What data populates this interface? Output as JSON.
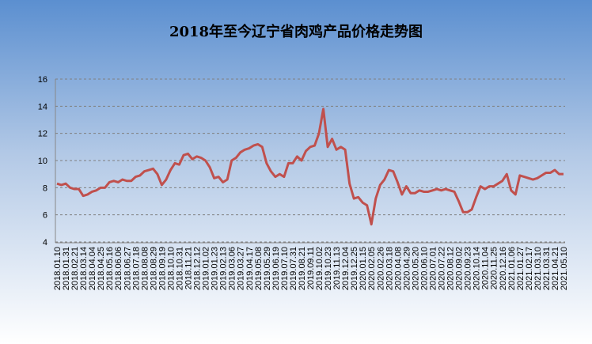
{
  "chart_data": {
    "type": "line",
    "title": "2018年至今辽宁省肉鸡产品价格走势图",
    "categories": [
      "2018.01.10",
      null,
      "2018.01.31",
      null,
      "2018.02.21",
      null,
      "2018.03.14",
      null,
      "2018.04.04",
      null,
      "2018.04.25",
      null,
      "2018.05.16",
      null,
      "2018.06.06",
      null,
      "2018.06.27",
      null,
      "2018.07.18",
      null,
      "2018.08.08",
      null,
      "2018.08.29",
      null,
      "2018.09.19",
      null,
      "2018.10.10",
      null,
      "2018.10.31",
      null,
      "2018.11.21",
      null,
      "2018.12.12",
      null,
      "2019.01.02",
      null,
      "2019.01.23",
      null,
      "2019.02.13",
      null,
      "2019.03.06",
      null,
      "2019.03.27",
      null,
      "2019.04.17",
      null,
      "2019.05.08",
      null,
      "2019.05.29",
      null,
      "2019.06.19",
      null,
      "2019.07.10",
      null,
      "2019.07.31",
      null,
      "2019.08.21",
      null,
      "2019.09.11",
      null,
      "2019.10.02",
      null,
      "2019.10.23",
      null,
      "2019.11.13",
      null,
      "2019.12.04",
      null,
      "2019.12.25",
      null,
      "2020.01.15",
      null,
      "2020.02.05",
      null,
      "2020.02.26",
      null,
      "2020.03.18",
      null,
      "2020.04.08",
      null,
      "2020.04.29",
      null,
      "2020.05.20",
      null,
      "2020.06.10",
      null,
      "2020.07.01",
      null,
      "2020.07.22",
      null,
      "2020.08.12",
      null,
      "2020.09.02",
      null,
      "2020.09.23",
      null,
      "2020.10.14",
      null,
      "2020.11.04",
      null,
      "2020.11.25",
      null,
      "2020.12.16",
      null,
      "2021.01.06",
      null,
      "2021.01.27",
      null,
      "2021.02.17",
      null,
      "2021.03.10",
      null,
      "2021.03.31",
      null,
      "2021.04.21",
      null,
      "2021.05.10"
    ],
    "series": [
      {
        "color": "#c0504d",
        "values": [
          8.3,
          8.2,
          8.3,
          8.0,
          7.9,
          7.9,
          7.4,
          7.5,
          7.7,
          7.8,
          8.0,
          8.0,
          8.4,
          8.5,
          8.4,
          8.6,
          8.5,
          8.5,
          8.8,
          8.9,
          9.2,
          9.3,
          9.4,
          9.0,
          8.2,
          8.6,
          9.3,
          9.8,
          9.7,
          10.4,
          10.5,
          10.1,
          10.3,
          10.2,
          10.0,
          9.5,
          8.7,
          8.8,
          8.4,
          8.6,
          10.0,
          10.2,
          10.6,
          10.8,
          10.9,
          11.1,
          11.2,
          11.0,
          9.8,
          9.2,
          8.8,
          9.0,
          8.8,
          9.8,
          9.8,
          10.3,
          10.0,
          10.7,
          11.0,
          11.1,
          12.0,
          13.8,
          11.0,
          11.6,
          10.8,
          11.0,
          10.8,
          8.3,
          7.2,
          7.3,
          6.9,
          6.7,
          5.3,
          7.2,
          8.2,
          8.6,
          9.3,
          9.2,
          8.4,
          7.5,
          8.1,
          7.6,
          7.6,
          7.8,
          7.7,
          7.7,
          7.8,
          7.9,
          7.8,
          7.9,
          7.8,
          7.7,
          7.0,
          6.2,
          6.2,
          6.4,
          7.3,
          8.1,
          7.9,
          8.1,
          8.1,
          8.3,
          8.5,
          9.0,
          7.8,
          7.5,
          8.9,
          8.8,
          8.7,
          8.6,
          8.7,
          8.9,
          9.1,
          9.1,
          9.3,
          9.0,
          9.0
        ]
      }
    ],
    "ylim": [
      4,
      16
    ],
    "yticks": [
      4,
      6,
      8,
      10,
      12,
      14,
      16
    ],
    "grid": true
  }
}
